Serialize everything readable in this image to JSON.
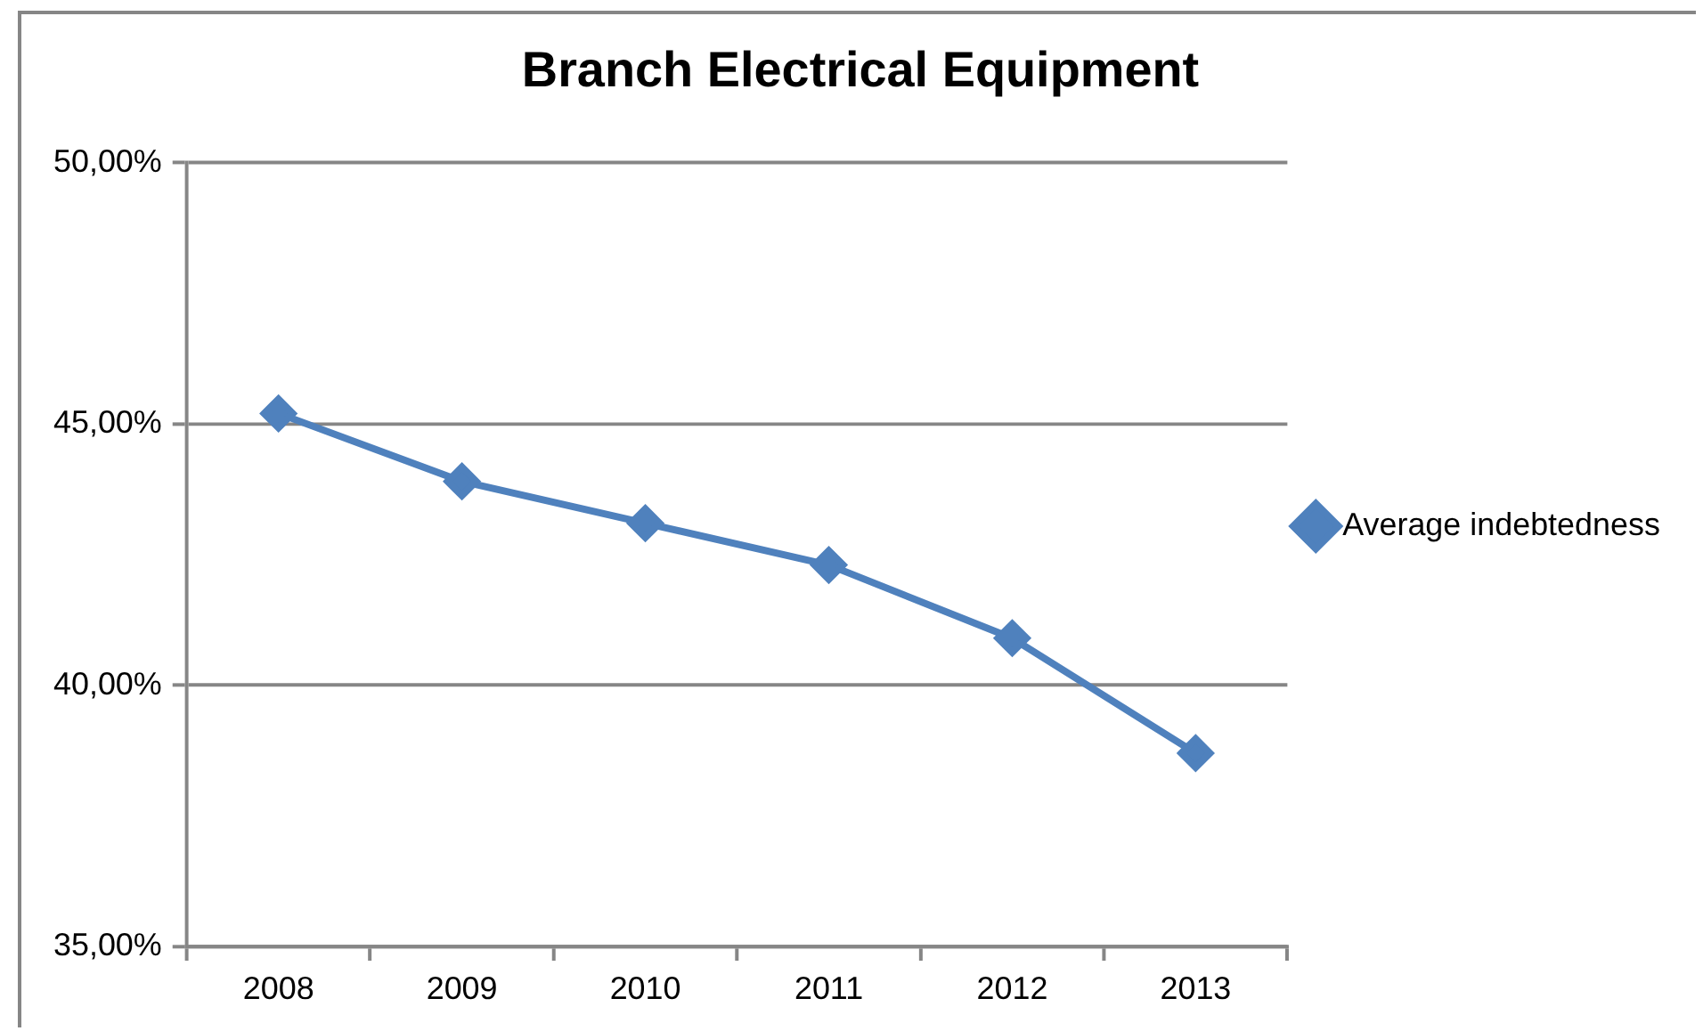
{
  "chart_data": {
    "type": "line",
    "title": "Branch Electrical Equipment",
    "categories": [
      "2008",
      "2009",
      "2010",
      "2011",
      "2012",
      "2013"
    ],
    "series": [
      {
        "name": "Average indebtedness",
        "color": "#4f81bd",
        "values": [
          45.2,
          43.9,
          43.1,
          42.3,
          40.9,
          38.7
        ]
      }
    ],
    "ylim": [
      35,
      50
    ],
    "yticks": [
      {
        "value": 35,
        "label": "35,00%"
      },
      {
        "value": 40,
        "label": "40,00%"
      },
      {
        "value": 45,
        "label": "45,00%"
      },
      {
        "value": 50,
        "label": "50,00%"
      }
    ],
    "grid": "y",
    "legend": "right",
    "marker": "diamond",
    "line_style": "solid"
  }
}
